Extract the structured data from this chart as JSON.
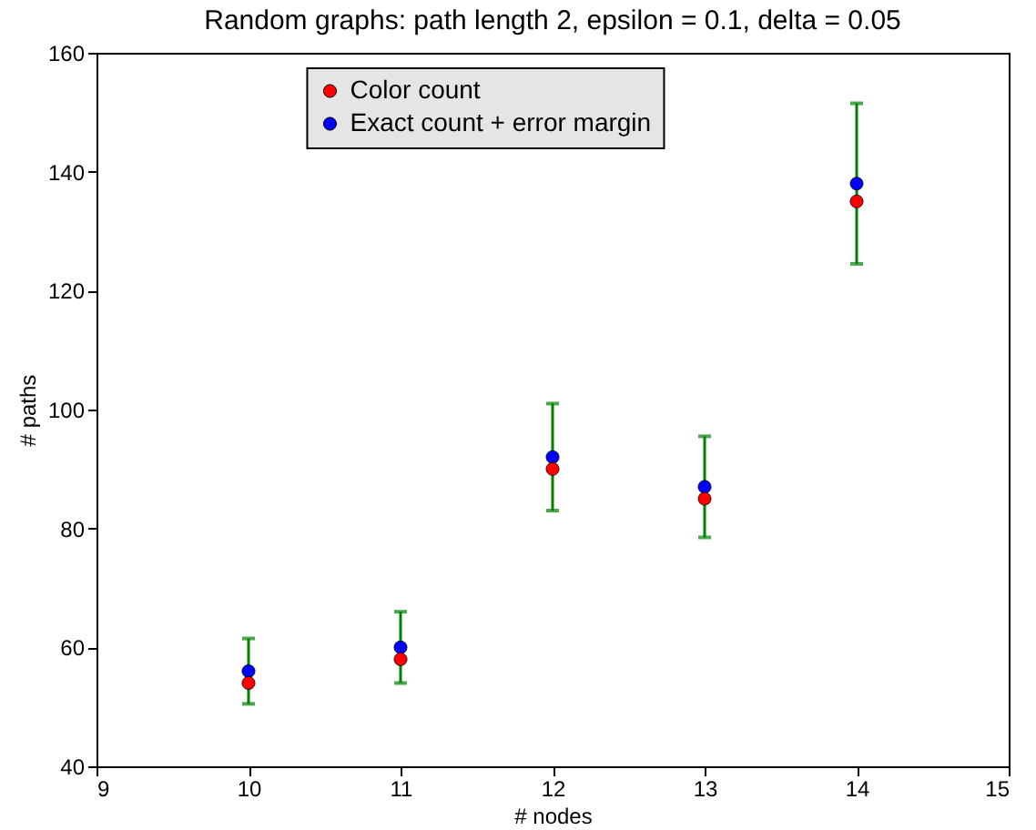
{
  "chart_data": {
    "type": "scatter",
    "title": "Random graphs: path length 2, epsilon = 0.1, delta = 0.05",
    "xlabel": "# nodes",
    "ylabel": "# paths",
    "x": [
      10,
      11,
      12,
      13,
      14
    ],
    "series": [
      {
        "name": "Color count",
        "color": "#ff0000",
        "values": [
          54,
          58,
          90,
          85,
          135
        ]
      },
      {
        "name": "Exact count + error margin",
        "color": "#0000ff",
        "values": [
          56,
          60,
          92,
          87,
          138
        ],
        "errors": [
          5.5,
          6,
          9,
          8.5,
          13.5
        ]
      }
    ],
    "xlim": [
      9,
      15
    ],
    "xticks": [
      9,
      10,
      11,
      12,
      13,
      14,
      15
    ],
    "ylim": [
      40,
      160
    ],
    "yticks": [
      40,
      60,
      80,
      100,
      120,
      140,
      160
    ],
    "grid": false,
    "legend": "top",
    "marker": "circle"
  }
}
